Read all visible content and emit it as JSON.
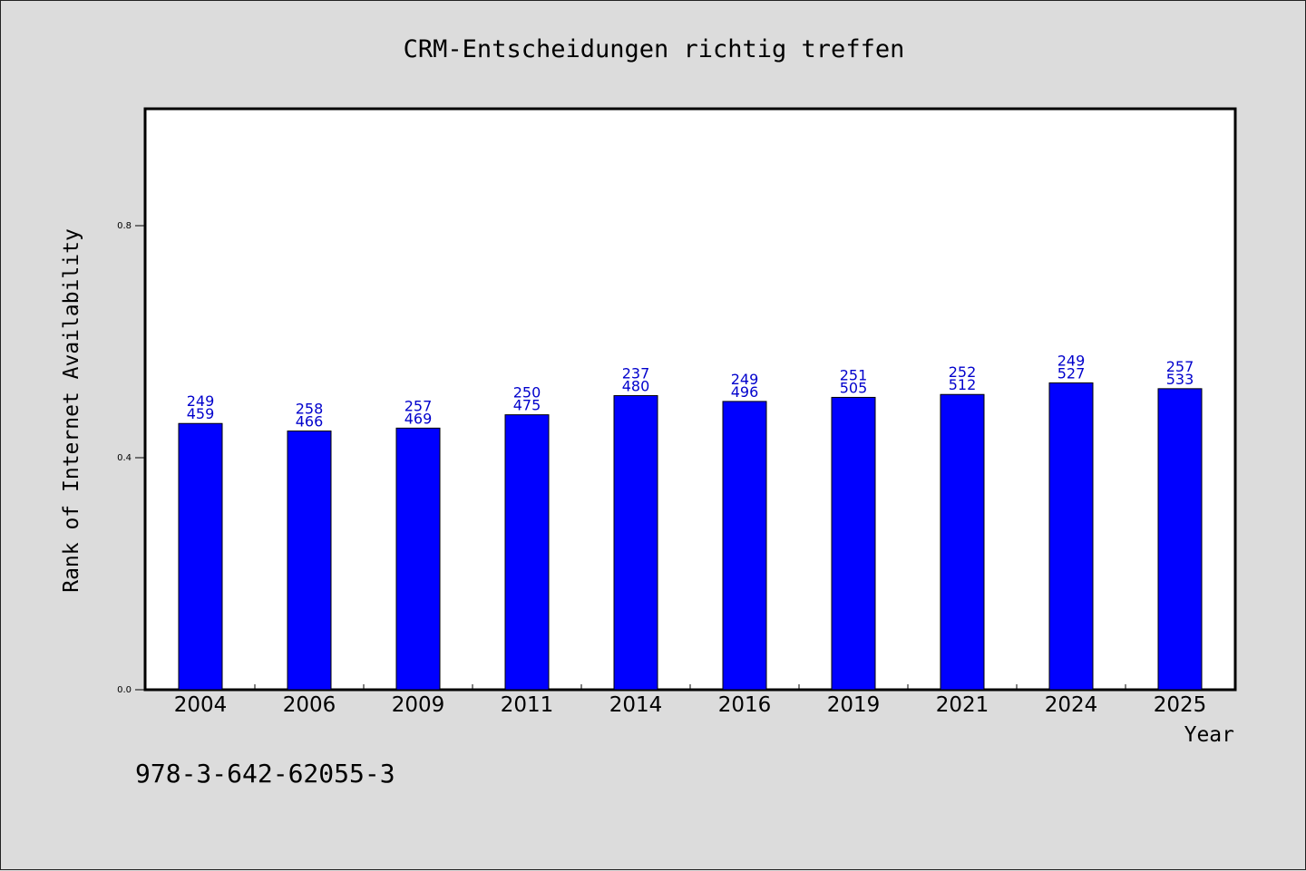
{
  "chart_data": {
    "type": "bar",
    "title": "CRM-Entscheidungen richtig treffen",
    "xlabel": "Year",
    "ylabel": "Rank of Internet Availability",
    "categories": [
      "2004",
      "2006",
      "2009",
      "2011",
      "2014",
      "2016",
      "2019",
      "2021",
      "2024",
      "2025"
    ],
    "values": [
      0.459,
      0.446,
      0.451,
      0.474,
      0.507,
      0.497,
      0.504,
      0.509,
      0.529,
      0.519
    ],
    "labels_top": [
      "249",
      "258",
      "257",
      "250",
      "237",
      "249",
      "251",
      "252",
      "249",
      "257"
    ],
    "labels_bottom": [
      "459",
      "466",
      "469",
      "475",
      "480",
      "496",
      "505",
      "512",
      "527",
      "533"
    ],
    "ylim": [
      0,
      1.0
    ],
    "yticks": [
      0.0,
      0.4,
      0.8
    ],
    "ytick_labels": [
      "0.0",
      "0.4",
      "0.8"
    ],
    "grid": false,
    "bar_color": "#0000ff",
    "label_color": "#0000cc"
  },
  "footnote": "978-3-642-62055-3"
}
